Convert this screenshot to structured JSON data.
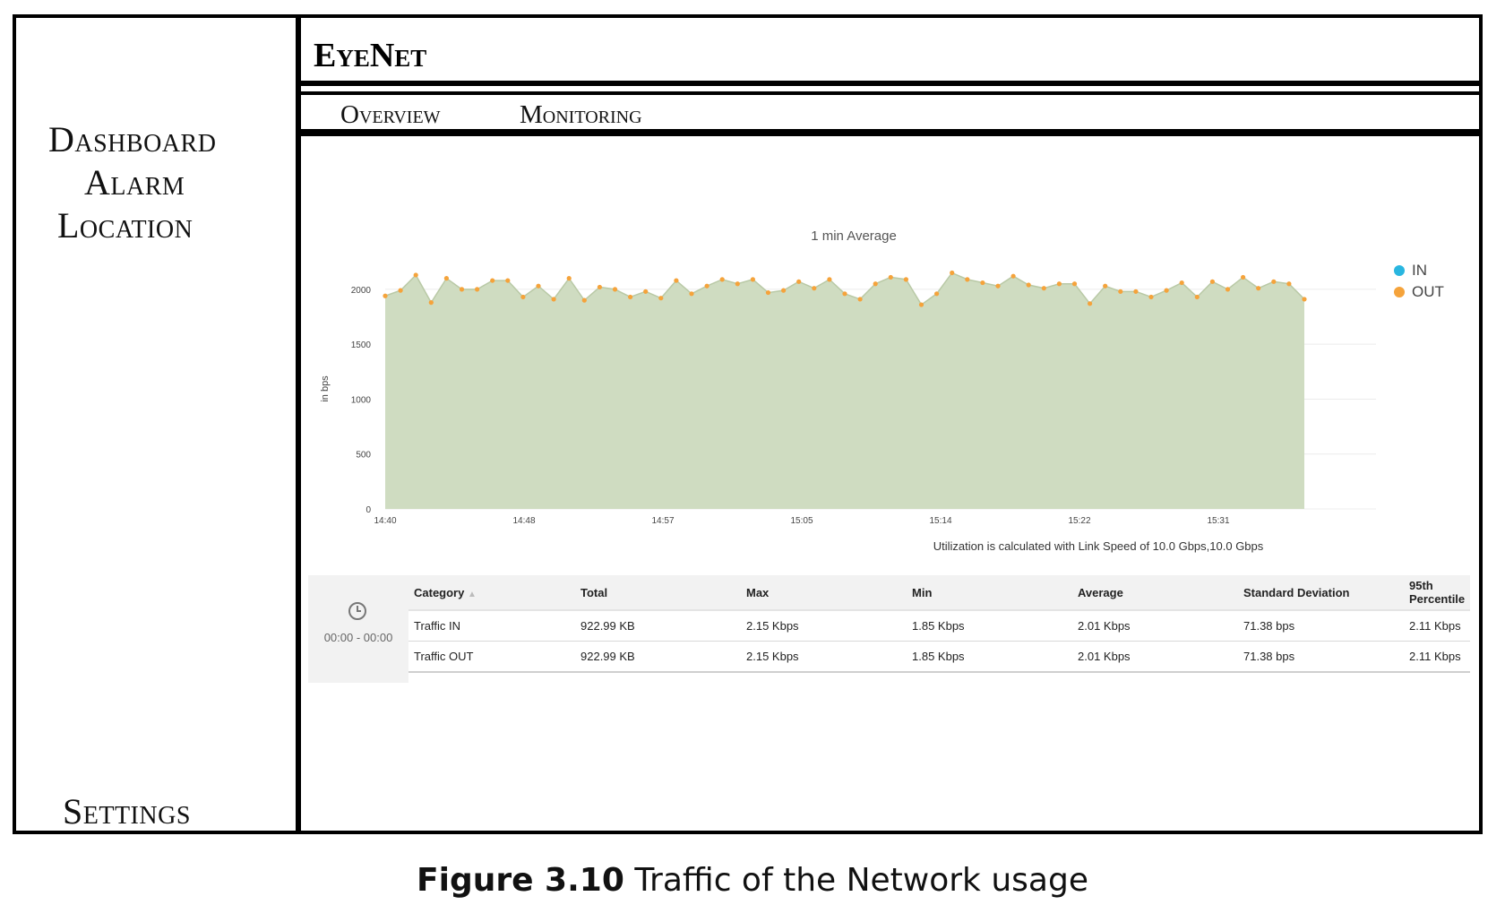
{
  "app": {
    "title": "EyeNet"
  },
  "sidebar": {
    "items": [
      {
        "label": "Dashboard"
      },
      {
        "label": "Alarm"
      },
      {
        "label": "Location"
      },
      {
        "label": "Settings"
      }
    ]
  },
  "tabs": [
    {
      "label": "Overview"
    },
    {
      "label": "Monitoring"
    }
  ],
  "chart_data": {
    "type": "area",
    "title": "1 min Average",
    "ylabel": "in bps",
    "xlabel": "",
    "ylim": [
      0,
      2000
    ],
    "yticks": [
      0,
      500,
      1000,
      1500,
      2000
    ],
    "xticks": [
      "14:40",
      "14:48",
      "14:57",
      "15:05",
      "15:14",
      "15:22",
      "15:31"
    ],
    "legend": [
      "IN",
      "OUT"
    ],
    "legend_position": "right",
    "colors": {
      "IN": "#29b6e0",
      "OUT": "#f5a33b",
      "area": "#cfdcc1"
    },
    "series": [
      {
        "name": "OUT",
        "values": [
          1940,
          1990,
          2130,
          1880,
          2100,
          2000,
          2000,
          2080,
          2080,
          1930,
          2030,
          1910,
          2100,
          1900,
          2020,
          2000,
          1930,
          1980,
          1920,
          2080,
          1960,
          2030,
          2090,
          2050,
          2090,
          1970,
          1990,
          2070,
          2010,
          2090,
          1960,
          1910,
          2050,
          2110,
          2090,
          1860,
          1960,
          2150,
          2090,
          2060,
          2030,
          2120,
          2040,
          2010,
          2050,
          2050,
          1870,
          2030,
          1980,
          1980,
          1930,
          1990,
          2060,
          1930,
          2070,
          2000,
          2110,
          2010,
          2070,
          2050,
          1910
        ]
      },
      {
        "name": "IN",
        "values": [
          1940,
          1990,
          2130,
          1880,
          2100,
          2000,
          2000,
          2080,
          2080,
          1930,
          2030,
          1910,
          2100,
          1900,
          2020,
          2000,
          1930,
          1980,
          1920,
          2080,
          1960,
          2030,
          2090,
          2050,
          2090,
          1970,
          1990,
          2070,
          2010,
          2090,
          1960,
          1910,
          2050,
          2110,
          2090,
          1860,
          1960,
          2150,
          2090,
          2060,
          2030,
          2120,
          2040,
          2010,
          2050,
          2050,
          1870,
          2030,
          1980,
          1980,
          1930,
          1990,
          2060,
          1930,
          2070,
          2000,
          2110,
          2010,
          2070,
          2050,
          1910
        ]
      }
    ]
  },
  "utilization_note": "Utilization is calculated with Link Speed of 10.0 Gbps,10.0 Gbps",
  "stats": {
    "time_range": "00:00 - 00:00",
    "headers": [
      "Category",
      "Total",
      "Max",
      "Min",
      "Average",
      "Standard Deviation",
      "95th Percentile"
    ],
    "rows": [
      [
        "Traffic IN",
        "922.99 KB",
        "2.15 Kbps",
        "1.85 Kbps",
        "2.01 Kbps",
        "71.38 bps",
        "2.11 Kbps"
      ],
      [
        "Traffic OUT",
        "922.99 KB",
        "2.15 Kbps",
        "1.85 Kbps",
        "2.01 Kbps",
        "71.38 bps",
        "2.11 Kbps"
      ]
    ]
  },
  "caption": {
    "figure": "Figure 3.10",
    "text": "Traffic of the Network usage"
  }
}
